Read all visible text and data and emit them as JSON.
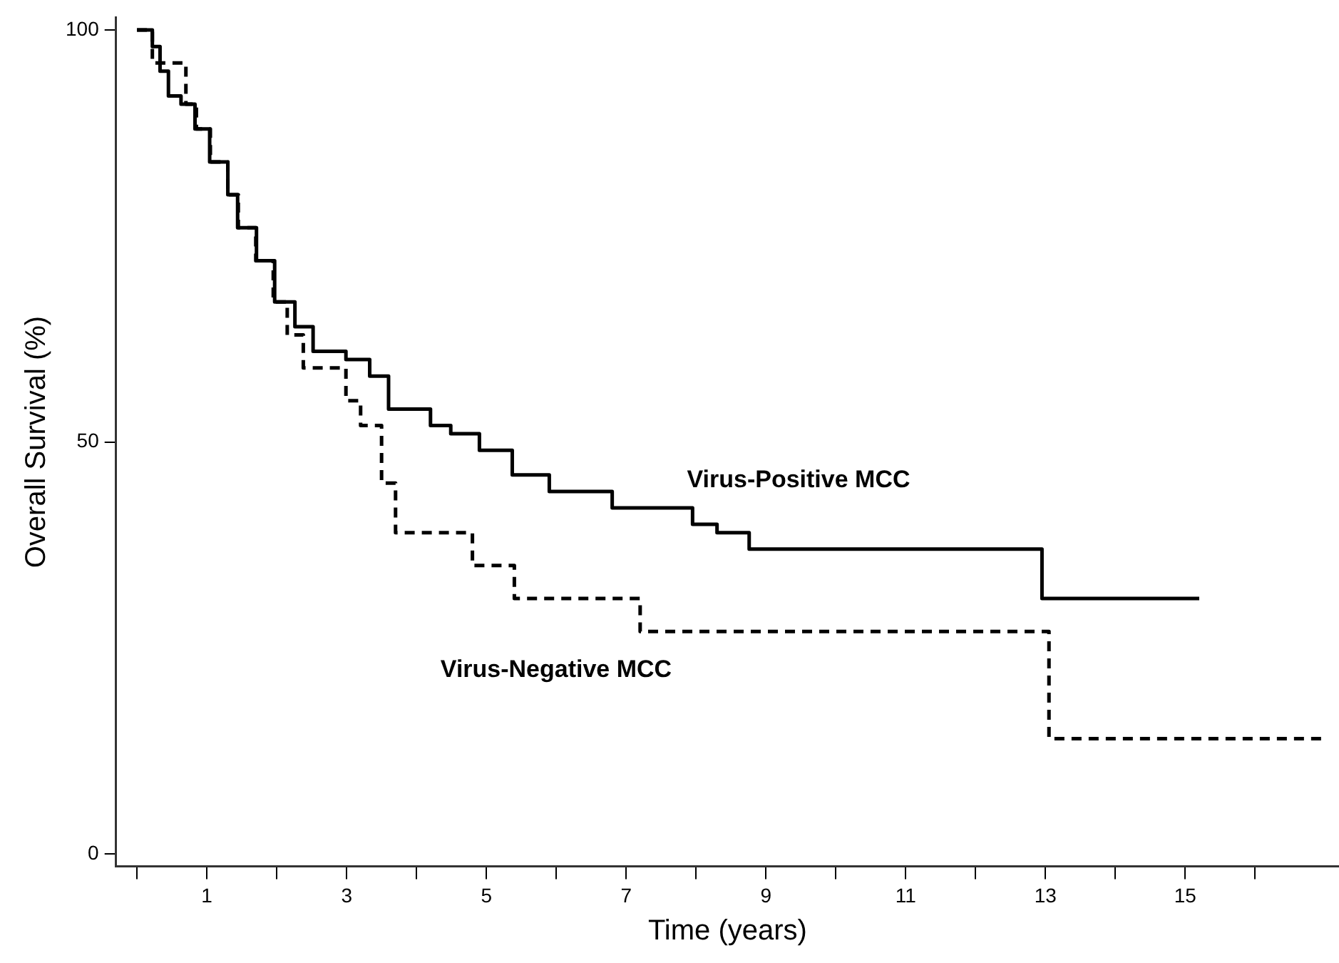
{
  "chart_data": {
    "type": "step",
    "xlabel": "Time (years)",
    "ylabel": "Overall Survival (%)",
    "xlim": [
      -0.3,
      17.2
    ],
    "ylim": [
      -1.5,
      101.5
    ],
    "xticks": [
      {
        "value": 0,
        "label": null
      },
      1,
      {
        "value": 2,
        "label": null
      },
      3,
      {
        "value": 4,
        "label": null
      },
      5,
      {
        "value": 6,
        "label": null
      },
      7,
      {
        "value": 8,
        "label": null
      },
      9,
      {
        "value": 10,
        "label": null
      },
      11,
      {
        "value": 12,
        "label": null
      },
      13,
      {
        "value": 14,
        "label": null
      },
      15,
      {
        "value": 16,
        "label": null
      }
    ],
    "yticks": [
      0,
      50,
      100
    ],
    "grid": false,
    "legend": false,
    "marker": "none",
    "series": [
      {
        "name": "Virus-Positive MCC",
        "color": "#000000",
        "line_style": "solid",
        "x": [
          0,
          0.22,
          0.33,
          0.45,
          0.63,
          0.83,
          1.04,
          1.3,
          1.44,
          1.71,
          1.97,
          2.26,
          2.52,
          2.99,
          3.33,
          3.6,
          4.2,
          4.49,
          4.9,
          5.37,
          5.9,
          6.8,
          7.4,
          7.95,
          8.3,
          8.76,
          12.95,
          15.2
        ],
        "values": [
          100,
          98,
          95,
          92,
          91,
          88,
          84,
          80,
          76,
          72,
          67,
          64,
          61,
          60,
          58,
          54,
          52,
          51,
          49,
          46,
          44,
          42,
          42,
          40,
          39,
          37,
          31,
          31
        ]
      },
      {
        "name": "Virus-Negative MCC",
        "color": "#000000",
        "line_style": "dashed",
        "x": [
          0,
          0.22,
          0.7,
          0.85,
          1.05,
          1.3,
          1.45,
          1.7,
          1.95,
          2.15,
          2.38,
          2.99,
          3.2,
          3.5,
          3.7,
          4.8,
          5.4,
          7.2,
          13.05,
          16.95
        ],
        "values": [
          100,
          96,
          91,
          88,
          84,
          80,
          76,
          72,
          67,
          63,
          59,
          55,
          52,
          45,
          39,
          35,
          31,
          27,
          14,
          14
        ]
      }
    ]
  }
}
